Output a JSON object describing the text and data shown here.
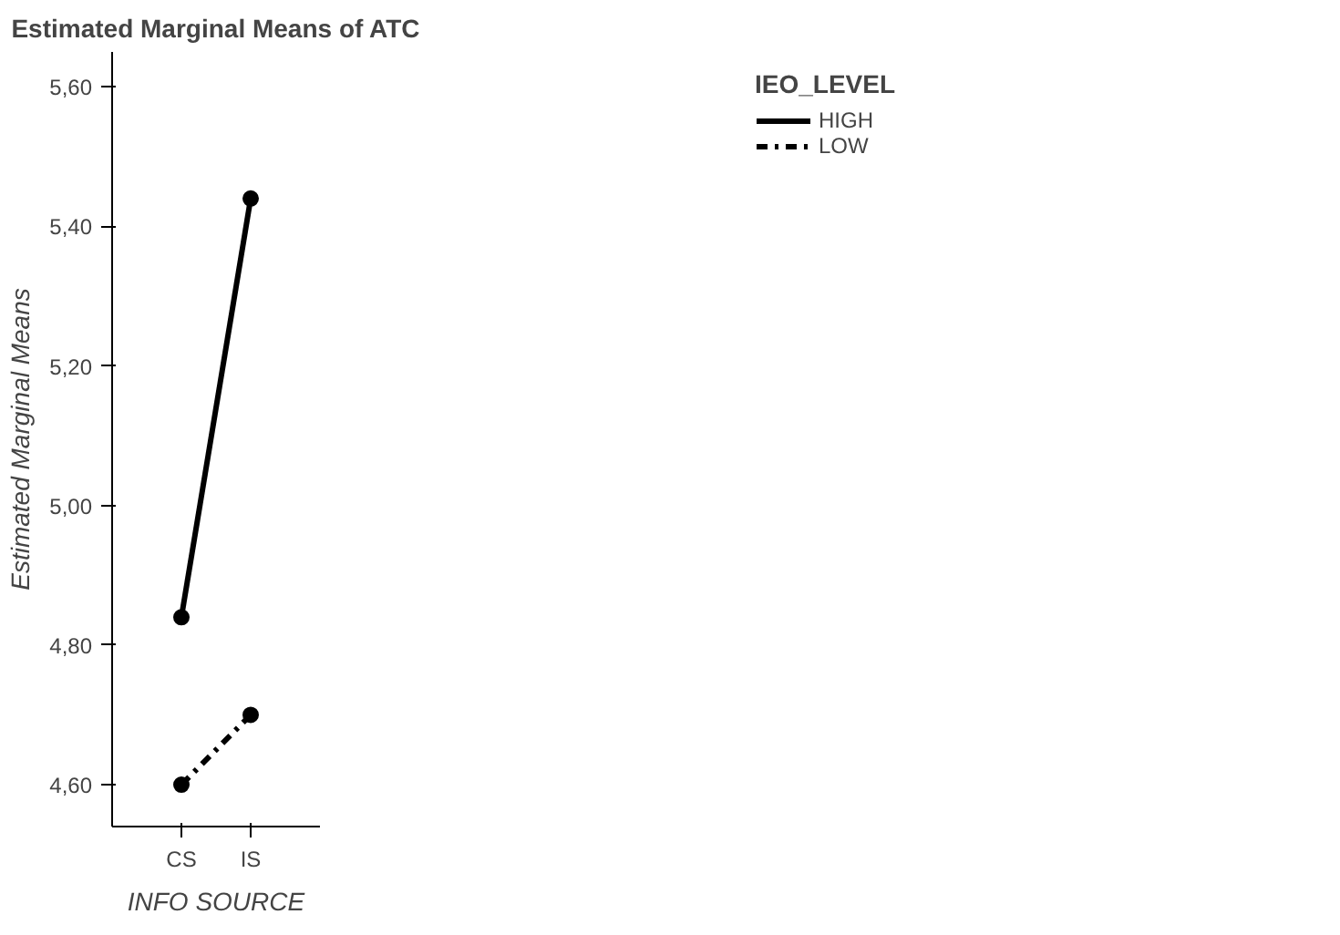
{
  "chart_data": {
    "type": "line",
    "title": "Estimated Marginal Means of ATC",
    "xlabel": "INFO SOURCE",
    "ylabel": "Estimated Marginal Means",
    "legend_title": "IEO_LEVEL",
    "categories": [
      "CS",
      "IS"
    ],
    "series": [
      {
        "name": "HIGH",
        "color": "#000000",
        "values": [
          4.84,
          5.44
        ],
        "line_style": "solid"
      },
      {
        "name": "LOW",
        "color": "#000000",
        "values": [
          4.6,
          4.7
        ],
        "line_style": "dashdot"
      }
    ],
    "ylim": [
      4.54,
      5.65
    ],
    "yticks": [
      {
        "value": 4.6,
        "label": "4,60"
      },
      {
        "value": 4.8,
        "label": "4,80"
      },
      {
        "value": 5.0,
        "label": "5,00"
      },
      {
        "value": 5.2,
        "label": "5,20"
      },
      {
        "value": 5.4,
        "label": "5,40"
      },
      {
        "value": 5.6,
        "label": "5,60"
      }
    ],
    "marker": "circle",
    "grid": false,
    "legend": "top right"
  }
}
